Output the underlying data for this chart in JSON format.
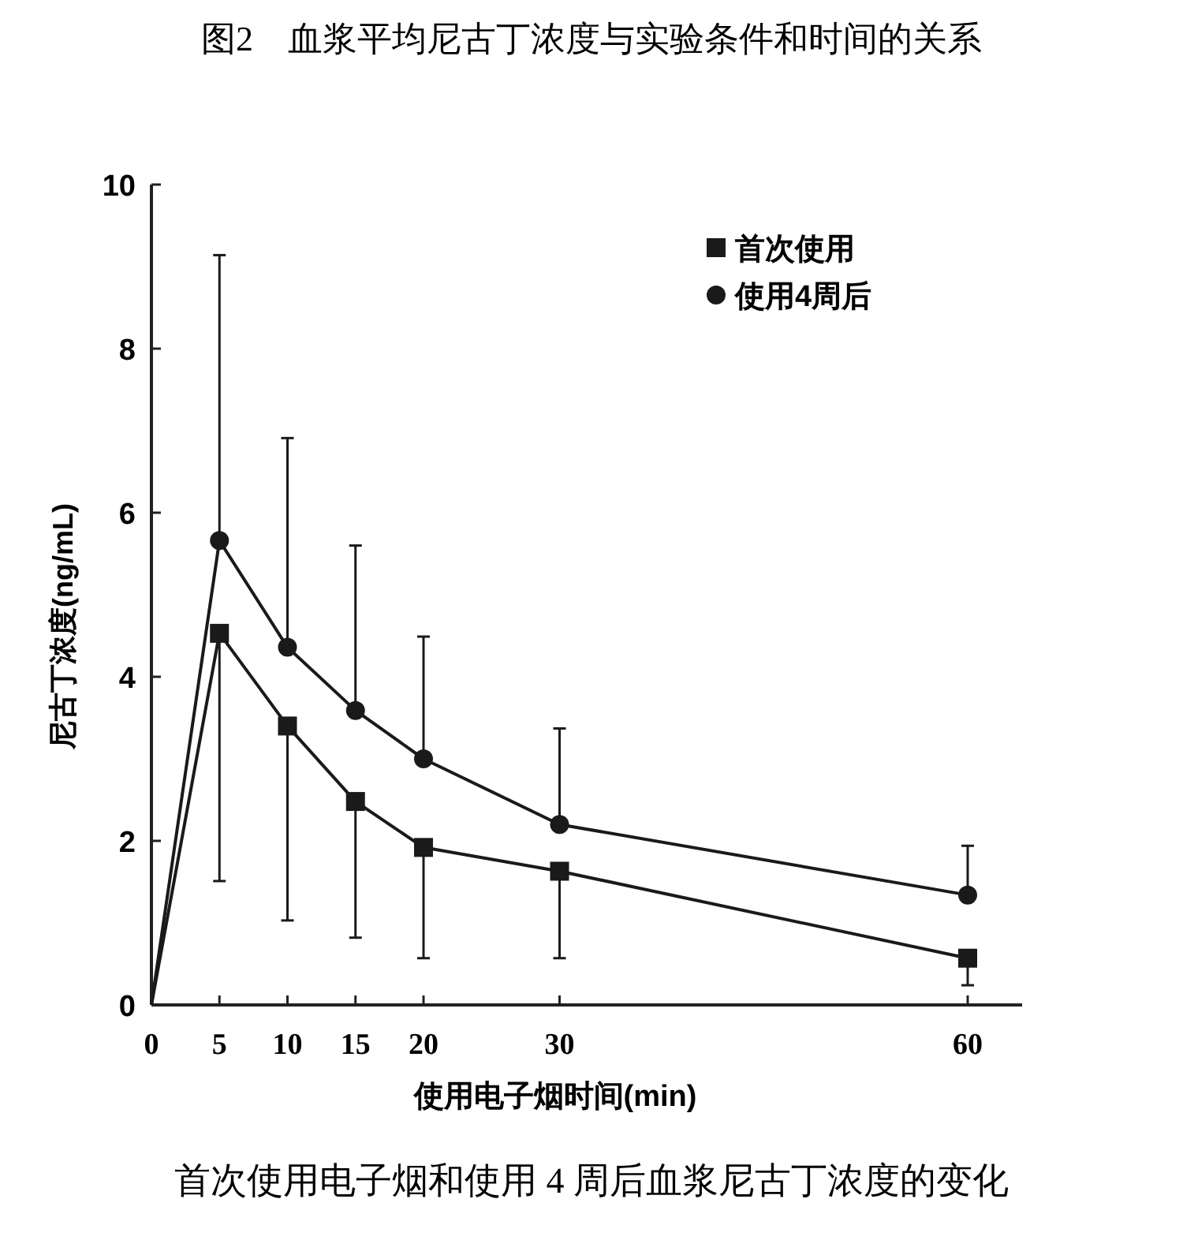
{
  "chart_data": {
    "type": "line",
    "title": "图2　血浆平均尼古丁浓度与实验条件和时间的关系",
    "xlabel": "使用电子烟时间(min)",
    "ylabel": "尼古丁浓度(ng/mL)",
    "annotations": [
      "首次使用电子烟和使用 4 周后血浆尼古丁浓度的变化"
    ],
    "x": [
      0,
      5,
      10,
      15,
      20,
      30,
      60
    ],
    "series": [
      {
        "name": "首次使用",
        "color": "#1a1a1a",
        "marker": "square",
        "values": [
          0,
          4.53,
          3.4,
          2.48,
          1.92,
          1.63,
          0.57
        ],
        "errors": [
          null,
          [
            1.51,
            4.53
          ],
          [
            1.03,
            3.4
          ],
          [
            0.82,
            2.48
          ],
          [
            0.57,
            1.92
          ],
          [
            0.57,
            1.63
          ],
          [
            0.24,
            0.57
          ]
        ]
      },
      {
        "name": "使用4周后",
        "color": "#1a1a1a",
        "marker": "circle",
        "values": [
          0,
          5.66,
          4.36,
          3.59,
          3.0,
          2.2,
          1.34
        ],
        "errors": [
          null,
          [
            5.66,
            9.14
          ],
          [
            4.36,
            6.91
          ],
          [
            3.59,
            5.6
          ],
          [
            3.0,
            4.49
          ],
          [
            2.2,
            3.37
          ],
          [
            1.34,
            1.94
          ]
        ]
      }
    ],
    "xlim": [
      0,
      64
    ],
    "xticks": [
      0,
      5,
      10,
      15,
      20,
      30,
      60
    ],
    "ylim": [
      0,
      10
    ],
    "yticks": [
      0,
      2,
      4,
      6,
      8,
      10
    ],
    "grid": false,
    "legend": "top right",
    "line_style": "solid"
  }
}
